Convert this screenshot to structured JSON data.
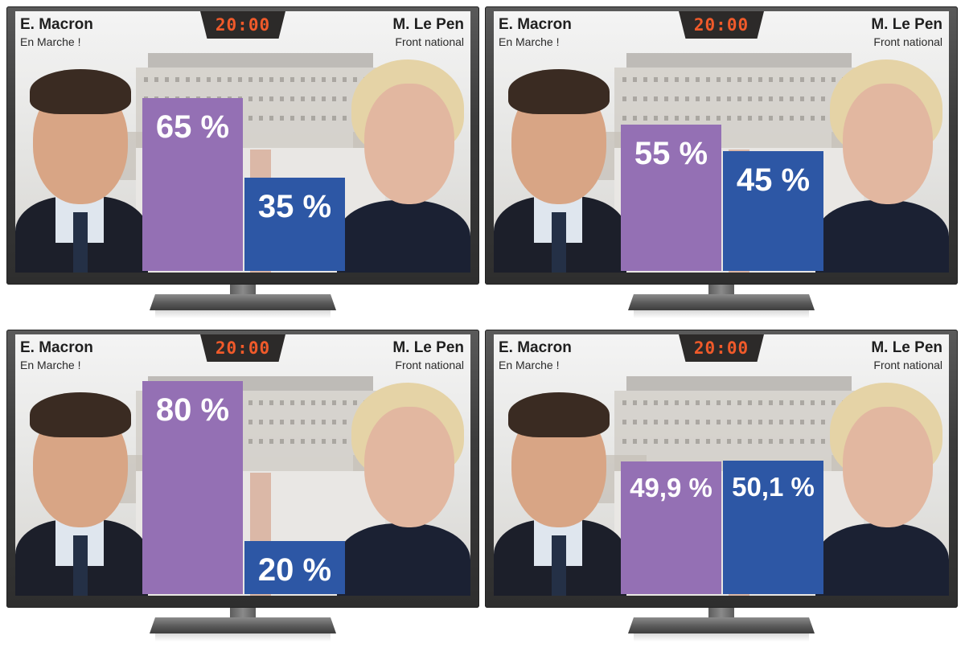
{
  "colors": {
    "macron_bar": "#9470b4",
    "lepen_bar": "#2d57a5",
    "clock_digits": "#f05a2a"
  },
  "chart_data": [
    {
      "type": "bar",
      "clock": "20:00",
      "left": {
        "name": "E. Macron",
        "party": "En Marche !"
      },
      "right": {
        "name": "M. Le Pen",
        "party": "Front national"
      },
      "categories": [
        "E. Macron",
        "M. Le Pen"
      ],
      "values": [
        65,
        35
      ],
      "labels": [
        "65 %",
        "35 %"
      ],
      "ylim": [
        0,
        100
      ]
    },
    {
      "type": "bar",
      "clock": "20:00",
      "left": {
        "name": "E. Macron",
        "party": "En Marche !"
      },
      "right": {
        "name": "M. Le Pen",
        "party": "Front national"
      },
      "categories": [
        "E. Macron",
        "M. Le Pen"
      ],
      "values": [
        55,
        45
      ],
      "labels": [
        "55 %",
        "45 %"
      ],
      "ylim": [
        0,
        100
      ]
    },
    {
      "type": "bar",
      "clock": "20:00",
      "left": {
        "name": "E. Macron",
        "party": "En Marche !"
      },
      "right": {
        "name": "M. Le Pen",
        "party": "Front national"
      },
      "categories": [
        "E. Macron",
        "M. Le Pen"
      ],
      "values": [
        80,
        20
      ],
      "labels": [
        "80 %",
        "20 %"
      ],
      "ylim": [
        0,
        100
      ]
    },
    {
      "type": "bar",
      "clock": "20:00",
      "left": {
        "name": "E. Macron",
        "party": "En Marche !"
      },
      "right": {
        "name": "M. Le Pen",
        "party": "Front national"
      },
      "categories": [
        "E. Macron",
        "M. Le Pen"
      ],
      "values": [
        49.9,
        50.1
      ],
      "labels": [
        "49,9 %",
        "50,1 %"
      ],
      "ylim": [
        0,
        100
      ]
    }
  ]
}
